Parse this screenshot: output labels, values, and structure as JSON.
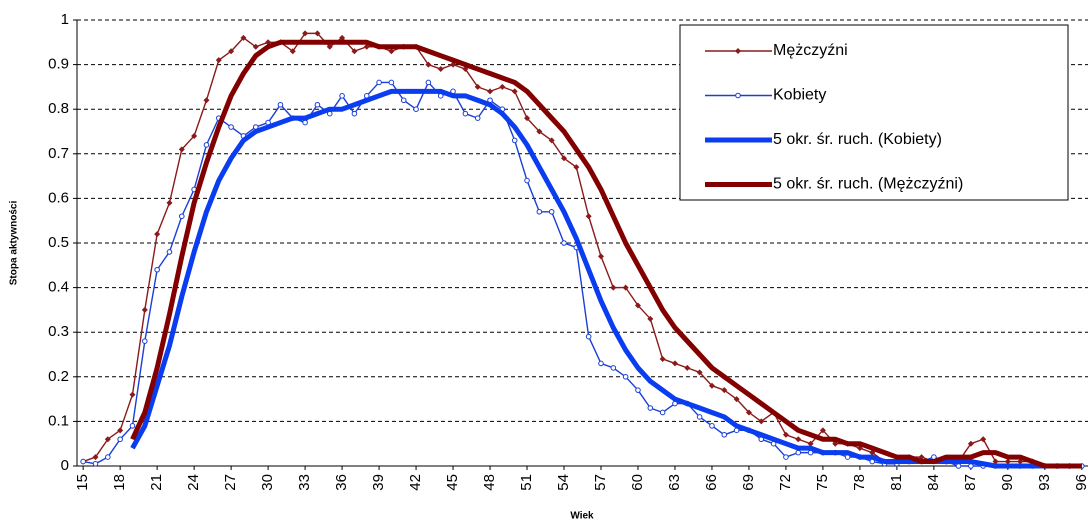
{
  "chart_data": {
    "type": "line",
    "xlabel": "Wiek",
    "ylabel": "Stopa aktywności",
    "x": [
      15,
      16,
      17,
      18,
      19,
      20,
      21,
      22,
      23,
      24,
      25,
      26,
      27,
      28,
      29,
      30,
      31,
      32,
      33,
      34,
      35,
      36,
      37,
      38,
      39,
      40,
      41,
      42,
      43,
      44,
      45,
      46,
      47,
      48,
      49,
      50,
      51,
      52,
      53,
      54,
      55,
      56,
      57,
      58,
      59,
      60,
      61,
      62,
      63,
      64,
      65,
      66,
      67,
      68,
      69,
      70,
      71,
      72,
      73,
      74,
      75,
      76,
      77,
      78,
      79,
      80,
      81,
      82,
      83,
      84,
      85,
      86,
      87,
      88,
      89,
      90,
      91,
      92,
      93,
      94,
      95,
      96
    ],
    "xlim": [
      14.5,
      96.5
    ],
    "xticks": [
      15,
      18,
      21,
      24,
      27,
      30,
      33,
      36,
      39,
      42,
      45,
      48,
      51,
      54,
      57,
      60,
      63,
      66,
      69,
      72,
      75,
      78,
      81,
      84,
      87,
      90,
      93,
      96
    ],
    "ylim": [
      0,
      1
    ],
    "yticks": [
      0,
      0.1,
      0.2,
      0.3,
      0.4,
      0.5,
      0.6,
      0.7,
      0.8,
      0.9,
      1
    ],
    "grid": true,
    "legend": "upper right",
    "series": [
      {
        "name": "Mężczyźni",
        "color": "#8b1a1a",
        "marker": "diamond",
        "values": [
          0.01,
          0.02,
          0.06,
          0.08,
          0.16,
          0.35,
          0.52,
          0.59,
          0.71,
          0.74,
          0.82,
          0.91,
          0.93,
          0.96,
          0.94,
          0.95,
          0.95,
          0.93,
          0.97,
          0.97,
          0.94,
          0.96,
          0.93,
          0.94,
          0.94,
          0.93,
          0.94,
          0.94,
          0.9,
          0.89,
          0.9,
          0.89,
          0.85,
          0.84,
          0.85,
          0.84,
          0.78,
          0.75,
          0.73,
          0.69,
          0.67,
          0.56,
          0.47,
          0.4,
          0.4,
          0.36,
          0.33,
          0.24,
          0.23,
          0.22,
          0.21,
          0.18,
          0.17,
          0.15,
          0.12,
          0.1,
          0.12,
          0.07,
          0.06,
          0.05,
          0.08,
          0.05,
          0.05,
          0.04,
          0.03,
          0.01,
          0.01,
          0.02,
          0.02,
          0.01,
          0.01,
          0.01,
          0.05,
          0.06,
          0.01,
          0.01,
          0.01,
          0.01,
          0,
          0,
          0,
          0
        ]
      },
      {
        "name": "Kobiety",
        "color": "#1a3fd6",
        "marker": "circle",
        "values": [
          0.01,
          0.005,
          0.02,
          0.06,
          0.09,
          0.28,
          0.44,
          0.48,
          0.56,
          0.62,
          0.72,
          0.78,
          0.76,
          0.74,
          0.76,
          0.77,
          0.81,
          0.78,
          0.77,
          0.81,
          0.79,
          0.83,
          0.79,
          0.83,
          0.86,
          0.86,
          0.82,
          0.8,
          0.86,
          0.83,
          0.84,
          0.79,
          0.78,
          0.82,
          0.8,
          0.73,
          0.64,
          0.57,
          0.57,
          0.5,
          0.49,
          0.29,
          0.23,
          0.22,
          0.2,
          0.17,
          0.13,
          0.12,
          0.14,
          0.14,
          0.11,
          0.09,
          0.07,
          0.08,
          0.08,
          0.06,
          0.05,
          0.02,
          0.03,
          0.03,
          0.03,
          0.03,
          0.02,
          0.02,
          0.01,
          0.005,
          0.005,
          0.01,
          0.01,
          0.02,
          0.01,
          0,
          0,
          0,
          0,
          0,
          0,
          0,
          0,
          0,
          0,
          0
        ]
      },
      {
        "name": "5 okr. śr. ruch. (Kobiety)",
        "color": "#0a3cf0",
        "values": [
          null,
          null,
          null,
          null,
          0.04,
          0.09,
          0.18,
          0.27,
          0.38,
          0.48,
          0.57,
          0.64,
          0.69,
          0.73,
          0.75,
          0.76,
          0.77,
          0.78,
          0.78,
          0.79,
          0.8,
          0.8,
          0.81,
          0.82,
          0.83,
          0.84,
          0.84,
          0.84,
          0.84,
          0.84,
          0.83,
          0.83,
          0.82,
          0.81,
          0.79,
          0.76,
          0.72,
          0.67,
          0.62,
          0.57,
          0.51,
          0.44,
          0.37,
          0.31,
          0.26,
          0.22,
          0.19,
          0.17,
          0.15,
          0.14,
          0.13,
          0.12,
          0.11,
          0.09,
          0.08,
          0.07,
          0.06,
          0.05,
          0.04,
          0.04,
          0.03,
          0.03,
          0.03,
          0.02,
          0.02,
          0.01,
          0.01,
          0.01,
          0.01,
          0.01,
          0.01,
          0.01,
          0.01,
          0.005,
          0,
          0,
          0,
          0,
          0,
          0,
          0,
          0
        ]
      },
      {
        "name": "5 okr. śr. ruch. (Mężczyźni)",
        "color": "#820000",
        "values": [
          null,
          null,
          null,
          null,
          0.06,
          0.12,
          0.22,
          0.34,
          0.47,
          0.59,
          0.68,
          0.76,
          0.83,
          0.88,
          0.92,
          0.94,
          0.95,
          0.95,
          0.95,
          0.95,
          0.95,
          0.95,
          0.95,
          0.95,
          0.94,
          0.94,
          0.94,
          0.94,
          0.93,
          0.92,
          0.91,
          0.9,
          0.89,
          0.88,
          0.87,
          0.86,
          0.84,
          0.81,
          0.78,
          0.75,
          0.71,
          0.67,
          0.62,
          0.56,
          0.5,
          0.45,
          0.4,
          0.35,
          0.31,
          0.28,
          0.25,
          0.22,
          0.2,
          0.18,
          0.16,
          0.14,
          0.12,
          0.1,
          0.08,
          0.07,
          0.06,
          0.06,
          0.05,
          0.05,
          0.04,
          0.03,
          0.02,
          0.02,
          0.01,
          0.01,
          0.02,
          0.02,
          0.02,
          0.03,
          0.03,
          0.02,
          0.02,
          0.01,
          0,
          0,
          0,
          0
        ]
      }
    ]
  }
}
